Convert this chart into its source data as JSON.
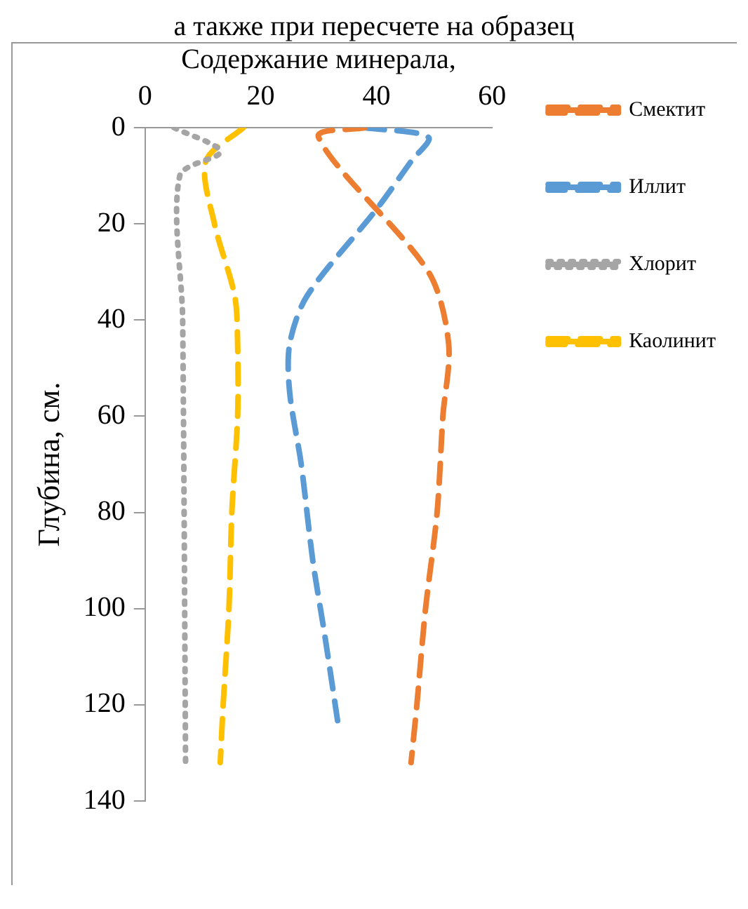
{
  "chart_data": {
    "type": "line",
    "annotations": [
      "а также при пересчете на образец"
    ],
    "xlabel": "Содержание минерала,",
    "ylabel": "Глубина, см.",
    "xlim": [
      0,
      60
    ],
    "xticks": [
      0,
      20,
      40,
      60
    ],
    "ylim": [
      140,
      0
    ],
    "yticks": [
      0,
      20,
      40,
      60,
      80,
      100,
      120,
      140
    ],
    "grid": false,
    "legend": "right",
    "marker": "none",
    "series": [
      {
        "name": "Смектит",
        "color": "#ed7d31",
        "line_style": "dashed",
        "x": [
          38,
          30,
          49,
          52.5,
          51.5,
          50.5,
          48.5,
          47,
          46
        ],
        "values": [
          0,
          2,
          30,
          45,
          60,
          80,
          100,
          120,
          132
        ]
      },
      {
        "name": "Иллит",
        "color": "#5b9bd5",
        "line_style": "dashed",
        "x": [
          38,
          49,
          46,
          40,
          28,
          25,
          25,
          27,
          29,
          31,
          33.5
        ],
        "values": [
          0,
          2,
          7,
          17,
          35,
          45,
          55,
          70,
          90,
          105,
          125
        ]
      },
      {
        "name": "Хлорит",
        "color": "#a5a5a5",
        "line_style": "dotted",
        "x": [
          5,
          13,
          6,
          6.5,
          7
        ],
        "values": [
          0,
          5,
          10,
          40,
          132
        ]
      },
      {
        "name": "Каолинит",
        "color": "#ffc000",
        "line_style": "dashed",
        "x": [
          17,
          10.5,
          12,
          15.5,
          16,
          16,
          15,
          14.5,
          13.5,
          13
        ],
        "values": [
          0,
          7,
          20,
          35,
          45,
          60,
          80,
          100,
          120,
          132
        ]
      }
    ]
  }
}
